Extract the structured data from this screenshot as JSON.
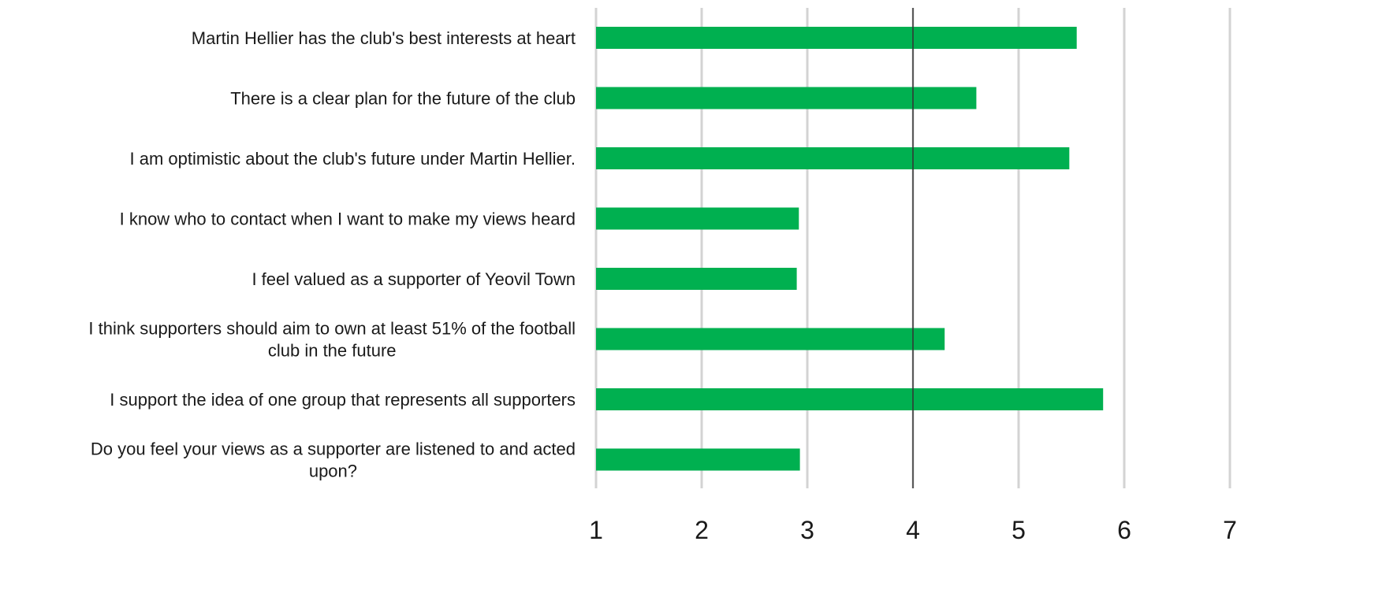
{
  "chart_data": {
    "type": "bar",
    "orientation": "horizontal",
    "title": "",
    "xlabel": "",
    "ylabel": "",
    "xlim": [
      1,
      7
    ],
    "x_ticks": [
      "1",
      "2",
      "3",
      "4",
      "5",
      "6",
      "7"
    ],
    "reference_line": 4,
    "grid": true,
    "bar_color": "#00b050",
    "categories": [
      [
        "Martin Hellier has the club's best interests at heart"
      ],
      [
        "There is a clear plan for the future of the club"
      ],
      [
        "I am optimistic about the club's future under Martin Hellier."
      ],
      [
        "I know who to contact when I want to make my views heard"
      ],
      [
        "I feel valued as a supporter of Yeovil Town"
      ],
      [
        "I think supporters should aim to own at least 51% of the football",
        "club in the future"
      ],
      [
        "I support the idea of one group that represents all supporters"
      ],
      [
        "Do you feel your views as a supporter are listened to and acted",
        "upon?"
      ]
    ],
    "values": [
      5.55,
      4.6,
      5.48,
      2.92,
      2.9,
      4.3,
      5.8,
      2.93
    ]
  }
}
